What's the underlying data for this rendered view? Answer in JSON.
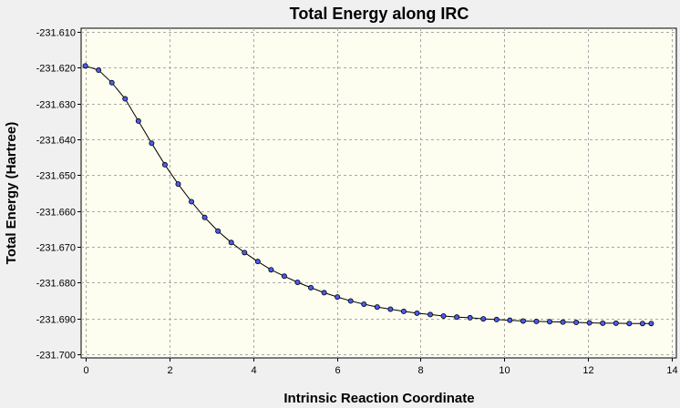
{
  "chart_data": {
    "type": "line",
    "title": "Total Energy along IRC",
    "xlabel": "Intrinsic Reaction Coordinate",
    "ylabel": "Total Energy (Hartree)",
    "xlim": [
      -0.1,
      14.1
    ],
    "ylim": [
      -231.701,
      -231.609
    ],
    "xticks": [
      0,
      2,
      4,
      6,
      8,
      10,
      12,
      14
    ],
    "xtick_labels": [
      "0",
      "2",
      "4",
      "6",
      "8",
      "10",
      "12",
      "14"
    ],
    "yticks": [
      -231.61,
      -231.62,
      -231.63,
      -231.64,
      -231.65,
      -231.66,
      -231.67,
      -231.68,
      -231.69,
      -231.7
    ],
    "ytick_labels": [
      "-231.610",
      "-231.620",
      "-231.630",
      "-231.640",
      "-231.650",
      "-231.660",
      "-231.670",
      "-231.680",
      "-231.690",
      "-231.700"
    ],
    "grid": true,
    "colors": {
      "background": "#f0f0f0",
      "plot_background": "#fefef0",
      "grid": "#a8a8a8",
      "line": "#000000",
      "marker_fill": "#4a5cf0"
    },
    "series": [
      {
        "x": [
          0,
          0.3165,
          0.633,
          0.9495,
          1.266,
          1.5825,
          1.899,
          2.2155,
          2.532,
          2.8485,
          3.165,
          3.4815,
          3.798,
          4.1145,
          4.431,
          4.7475,
          5.064,
          5.3805,
          5.697,
          6.0135,
          6.33,
          6.6465,
          6.963,
          7.2795,
          7.596,
          7.9125,
          8.229,
          8.5455,
          8.862,
          9.1785,
          9.495,
          9.8115,
          10.128,
          10.4445,
          10.761,
          11.0775,
          11.394,
          11.7105,
          12.027,
          12.3435,
          12.66,
          12.9765,
          13.293,
          13.5
        ],
        "values": [
          -231.6195,
          -231.6207,
          -231.6242,
          -231.6287,
          -231.6349,
          -231.6411,
          -231.6471,
          -231.6525,
          -231.6574,
          -231.6618,
          -231.6656,
          -231.6688,
          -231.6716,
          -231.6741,
          -231.6764,
          -231.6782,
          -231.6799,
          -231.6814,
          -231.6828,
          -231.684,
          -231.6851,
          -231.686,
          -231.6868,
          -231.6874,
          -231.688,
          -231.6885,
          -231.6889,
          -231.6893,
          -231.6896,
          -231.6898,
          -231.6901,
          -231.6903,
          -231.6905,
          -231.6907,
          -231.6908,
          -231.6909,
          -231.691,
          -231.6911,
          -231.6912,
          -231.6913,
          -231.6913,
          -231.6914,
          -231.6914,
          -231.6914
        ]
      }
    ]
  }
}
